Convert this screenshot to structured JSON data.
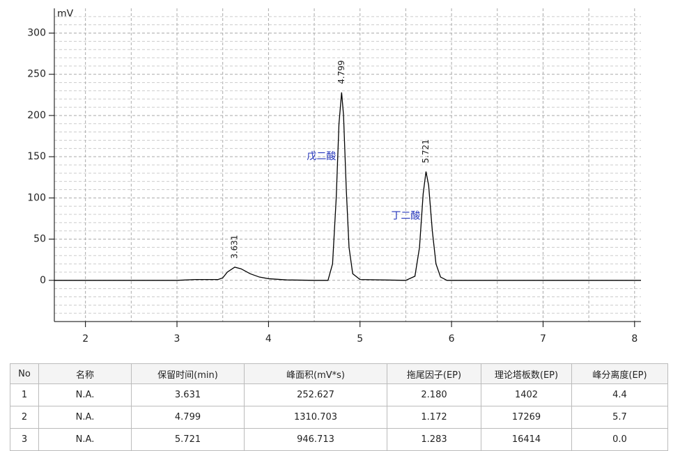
{
  "chart_data": {
    "type": "line",
    "y_label": "mV",
    "xlim": [
      1.66,
      8.07
    ],
    "ylim": [
      -50,
      330
    ],
    "xticks": [
      2,
      3,
      4,
      5,
      6,
      7,
      8
    ],
    "yticks": [
      0,
      50,
      100,
      150,
      200,
      250,
      300
    ],
    "x_minor_grid": [
      2.5,
      3.5,
      4.5,
      5.5,
      6.5,
      7.5
    ],
    "y_minor_grid": [
      -40,
      -30,
      -20,
      -10,
      10,
      20,
      30,
      40,
      60,
      70,
      80,
      90,
      110,
      120,
      130,
      140,
      160,
      170,
      180,
      190,
      210,
      220,
      230,
      240,
      260,
      270,
      280,
      290,
      310,
      320
    ],
    "grid": true,
    "series": [
      {
        "color": "#000000",
        "x": [
          1.66,
          3.0,
          3.2,
          3.45,
          3.5,
          3.55,
          3.631,
          3.7,
          3.8,
          3.9,
          4.0,
          4.2,
          4.5,
          4.65,
          4.7,
          4.74,
          4.77,
          4.799,
          4.82,
          4.85,
          4.88,
          4.92,
          5.0,
          5.5,
          5.6,
          5.65,
          5.69,
          5.721,
          5.75,
          5.79,
          5.83,
          5.88,
          5.95,
          8.07
        ],
        "values": [
          0,
          0,
          1,
          1,
          3,
          10,
          16,
          14,
          8,
          4,
          2,
          0.5,
          0,
          0,
          20,
          100,
          190,
          228,
          200,
          110,
          40,
          8,
          1,
          0,
          5,
          40,
          105,
          132,
          115,
          60,
          20,
          4,
          0,
          0
        ]
      }
    ],
    "peaks": [
      {
        "label": "3.631",
        "name": null
      },
      {
        "label": "4.799",
        "name": "戊二酸"
      },
      {
        "label": "5.721",
        "name": "丁二酸"
      }
    ]
  },
  "table": {
    "header": [
      "No",
      "名称",
      "保留时间(min)",
      "峰面积(mV*s)",
      "拖尾因子(EP)",
      "理论塔板数(EP)",
      "峰分离度(EP)"
    ],
    "rows": [
      [
        "1",
        "N.A.",
        "3.631",
        "252.627",
        "2.180",
        "1402",
        "4.4"
      ],
      [
        "2",
        "N.A.",
        "4.799",
        "1310.703",
        "1.172",
        "17269",
        "5.7"
      ],
      [
        "3",
        "N.A.",
        "5.721",
        "946.713",
        "1.283",
        "16414",
        "0.0"
      ]
    ]
  }
}
